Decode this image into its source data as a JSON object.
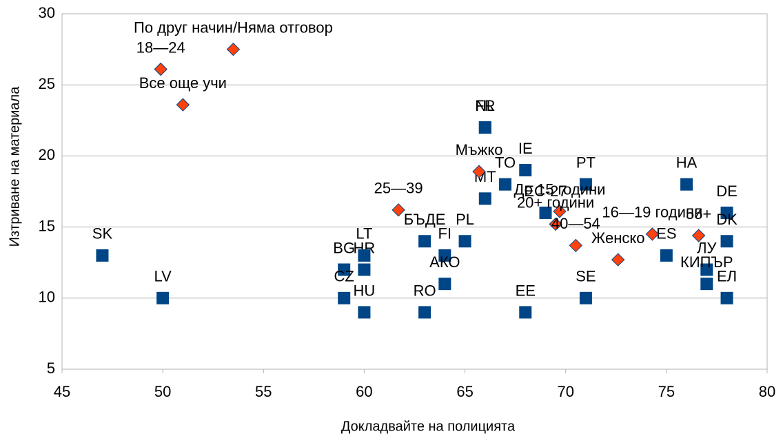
{
  "chart_data": {
    "type": "scatter",
    "x_label": "Докладвайте на полицията",
    "y_label": "Изтриване на материала",
    "xlim": [
      45,
      80
    ],
    "xticks": [
      45,
      50,
      55,
      60,
      65,
      70,
      75,
      80
    ],
    "ylim": [
      5,
      30
    ],
    "yticks": [
      5,
      10,
      15,
      20,
      25,
      30
    ],
    "grid": true,
    "series": [
      {
        "color": "#004586",
        "marker": "square",
        "labels": [
          "SK",
          "LV",
          "BG",
          "CZ",
          "HR",
          "LT",
          "HU",
          "RO",
          "БЪДЕ",
          "PL",
          "FI",
          "АКО",
          "NL",
          "FR",
          "MT",
          "TO",
          "IE",
          "EE",
          "EC-27",
          "PT",
          "SE",
          "HA",
          "ES",
          "DE",
          "DK",
          "ЛУ",
          "КИПЪР",
          "ЕЛ"
        ],
        "x": [
          47,
          50,
          59,
          59,
          60,
          60,
          60,
          63,
          63,
          65,
          64,
          64,
          66,
          66,
          66,
          67,
          68,
          68,
          69,
          71,
          71,
          76,
          75,
          78,
          78,
          77,
          77,
          78
        ],
        "values": [
          13,
          10,
          12,
          10,
          12,
          13,
          9,
          9,
          14,
          14,
          13,
          11,
          22,
          22,
          17,
          18,
          19,
          9,
          16,
          18,
          10,
          18,
          13,
          16,
          14,
          12,
          11,
          10
        ]
      },
      {
        "color": "#ff420e",
        "marker": "diamond",
        "labels": [
          "По друг начин/Няма отговор",
          "18—24",
          "Все още учи",
          "25—39",
          "Мъжко",
          "До 15 години",
          "20+ години",
          "40—54",
          "Женско",
          "16—19 години",
          "55+"
        ],
        "x": [
          53.5,
          49.9,
          51.0,
          61.7,
          65.7,
          69.7,
          69.5,
          70.5,
          72.6,
          74.3,
          76.6
        ],
        "values": [
          27.5,
          26.1,
          23.6,
          16.2,
          18.9,
          16.1,
          15.2,
          13.7,
          12.7,
          14.5,
          14.4
        ]
      }
    ]
  }
}
